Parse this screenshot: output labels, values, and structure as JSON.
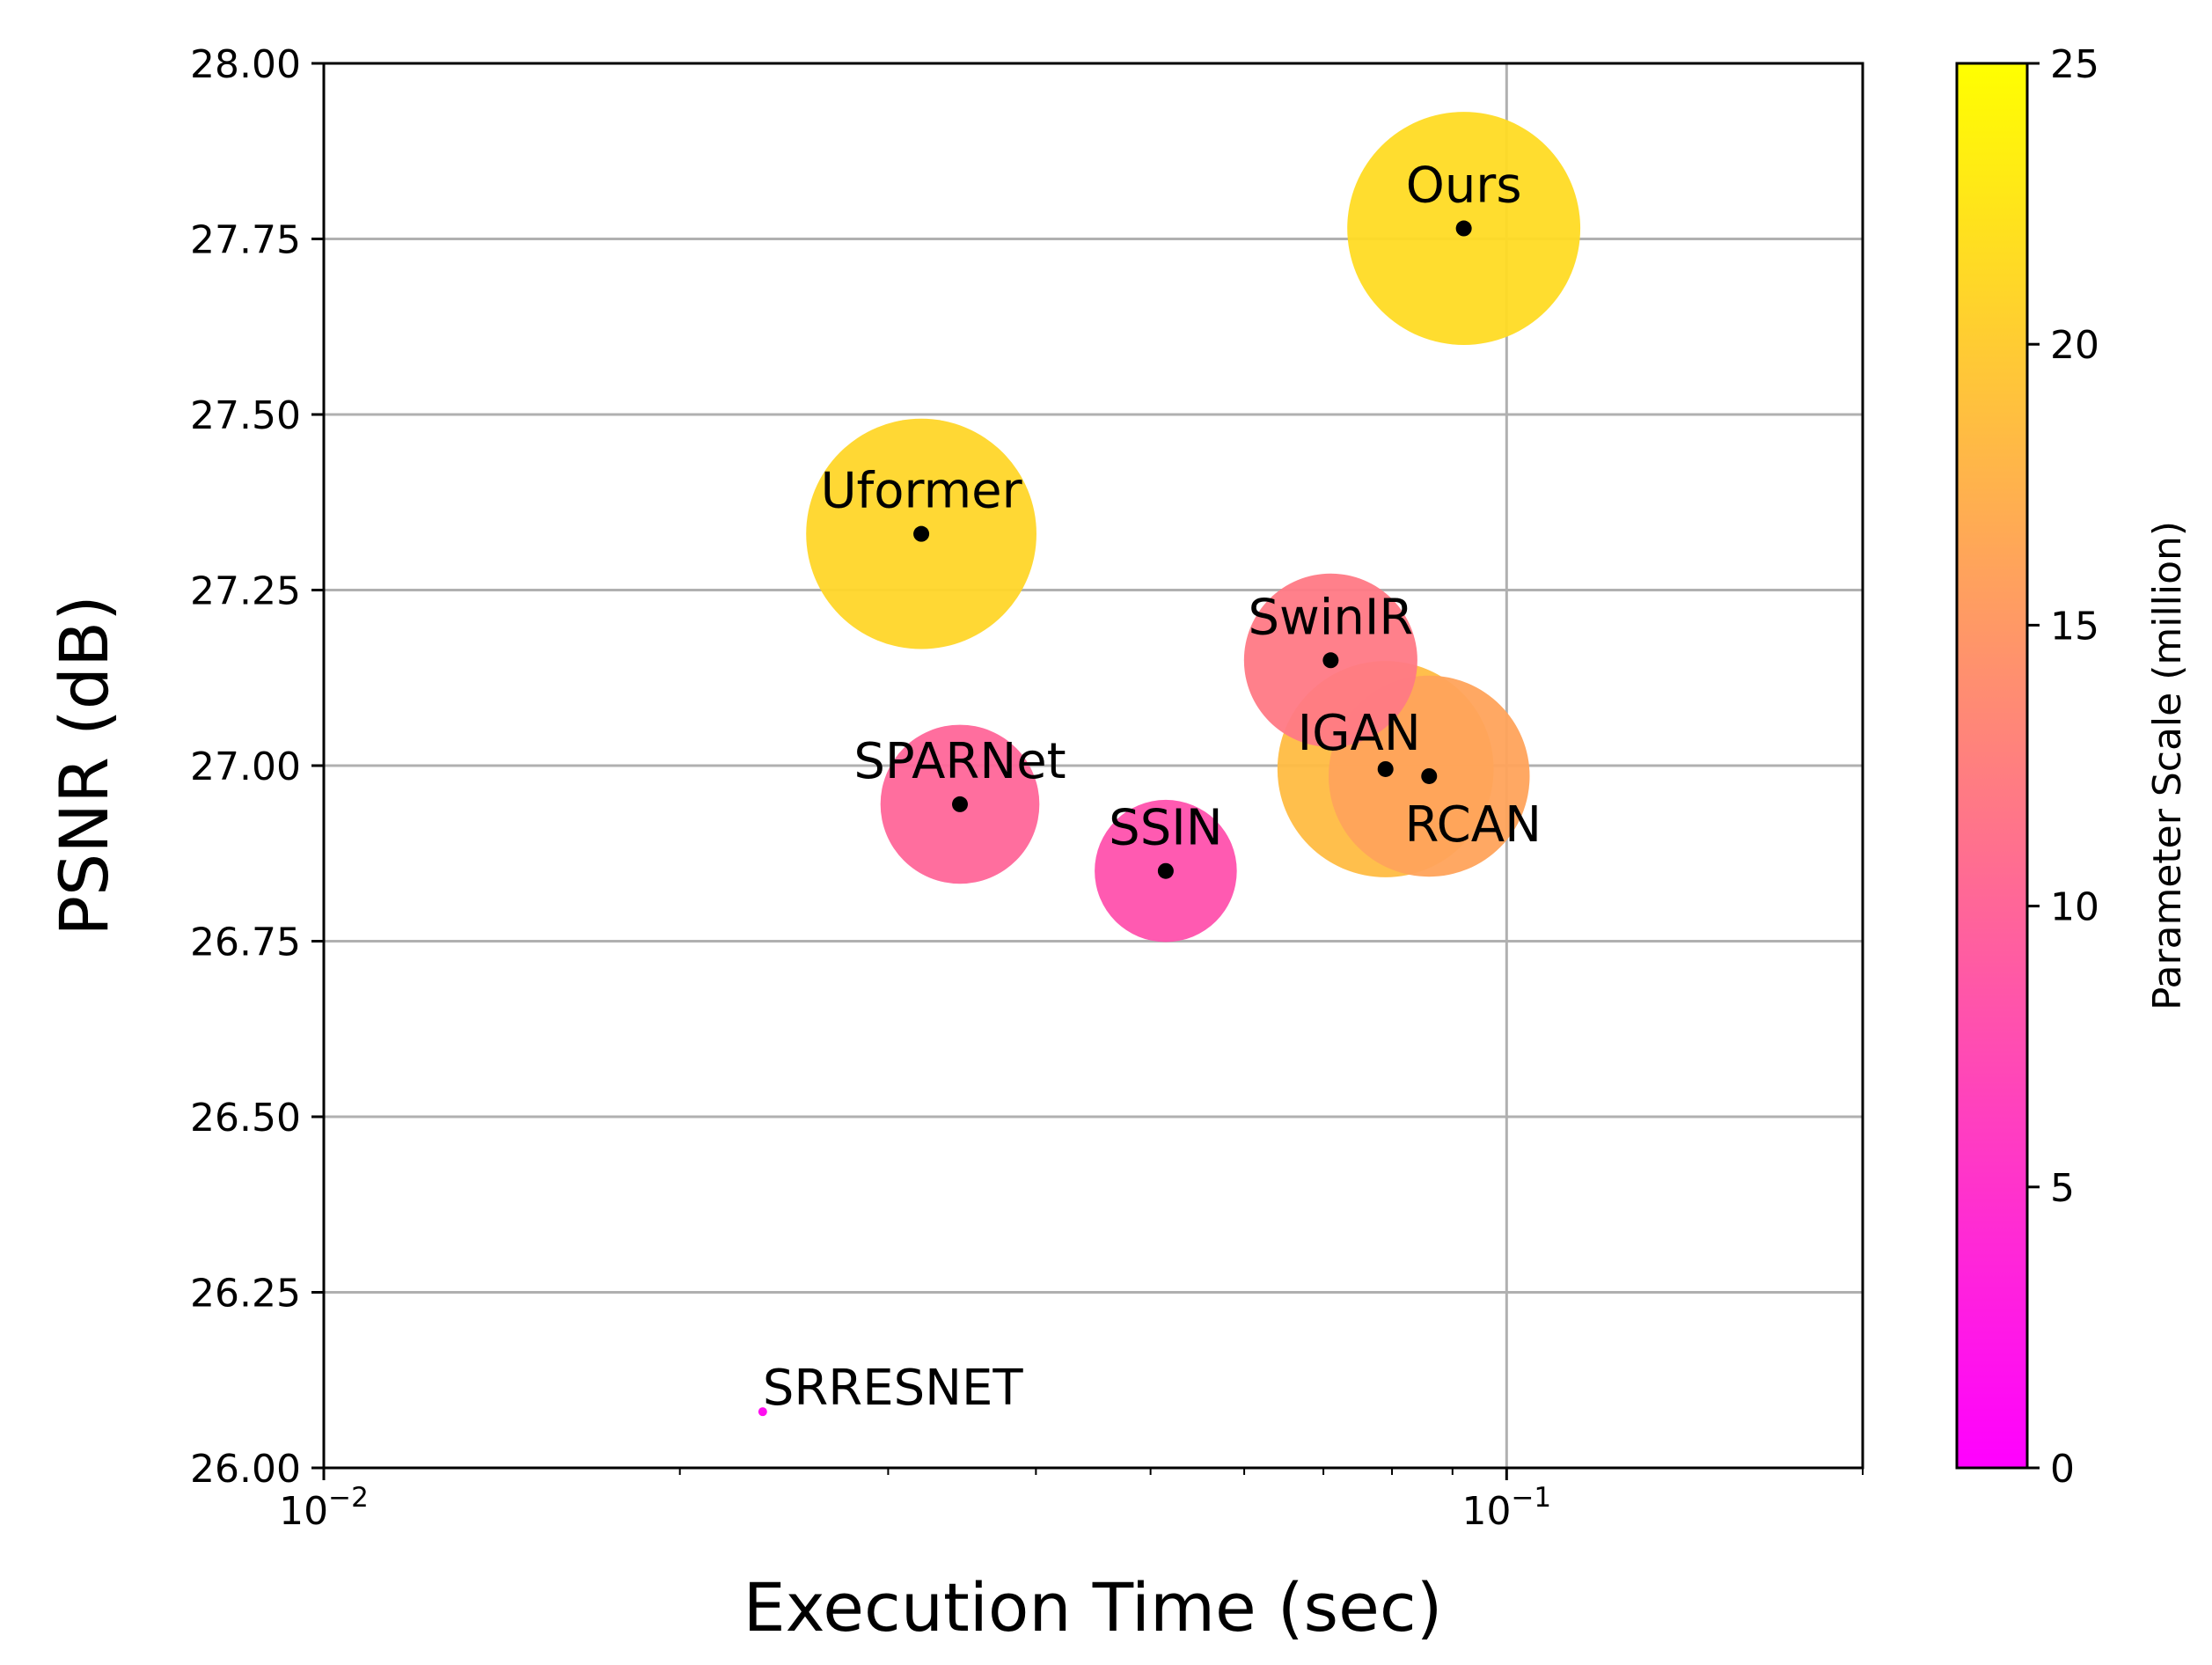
{
  "chart_data": {
    "type": "scatter",
    "title": "",
    "xlabel": "Execution Time (sec)",
    "ylabel": "PSNR (dB)",
    "xscale": "log",
    "xlim": [
      0.01,
      0.2
    ],
    "ylim": [
      26.0,
      28.0
    ],
    "x_ticks": [
      {
        "value": 0.01,
        "base": "10",
        "exp": "−2"
      },
      {
        "value": 0.1,
        "base": "10",
        "exp": "−1"
      }
    ],
    "y_ticks": [
      "26.00",
      "26.25",
      "26.50",
      "26.75",
      "27.00",
      "27.25",
      "27.50",
      "27.75",
      "28.00"
    ],
    "grid": "major",
    "size_encoding": "Parameter Scale (million)",
    "colorbar": {
      "label": "Parameter Scale (million)",
      "range": [
        0,
        25
      ],
      "ticks": [
        "0",
        "5",
        "10",
        "15",
        "20",
        "25"
      ],
      "color_low": "#ff00ff",
      "color_high": "#ffff00"
    },
    "series": [
      {
        "name": "Ours",
        "x": 0.092,
        "y": 27.765,
        "params": 21.5,
        "label_offset": "above"
      },
      {
        "name": "Uformer",
        "x": 0.032,
        "y": 27.33,
        "params": 21.0,
        "label_offset": "above"
      },
      {
        "name": "SwinIR",
        "x": 0.071,
        "y": 27.15,
        "params": 11.9,
        "label_offset": "above"
      },
      {
        "name": "IGAN",
        "x": 0.079,
        "y": 26.995,
        "params": 18.5,
        "label_offset": "above-left"
      },
      {
        "name": "RCAN",
        "x": 0.086,
        "y": 26.985,
        "params": 16.0,
        "label_offset": "below"
      },
      {
        "name": "SPARNet",
        "x": 0.0345,
        "y": 26.945,
        "params": 10.0,
        "label_offset": "above"
      },
      {
        "name": "SSIN",
        "x": 0.0515,
        "y": 26.85,
        "params": 8.0,
        "label_offset": "above"
      },
      {
        "name": "SRRESNET",
        "x": 0.0235,
        "y": 26.08,
        "params": 1.5,
        "label_offset": "right"
      }
    ]
  }
}
